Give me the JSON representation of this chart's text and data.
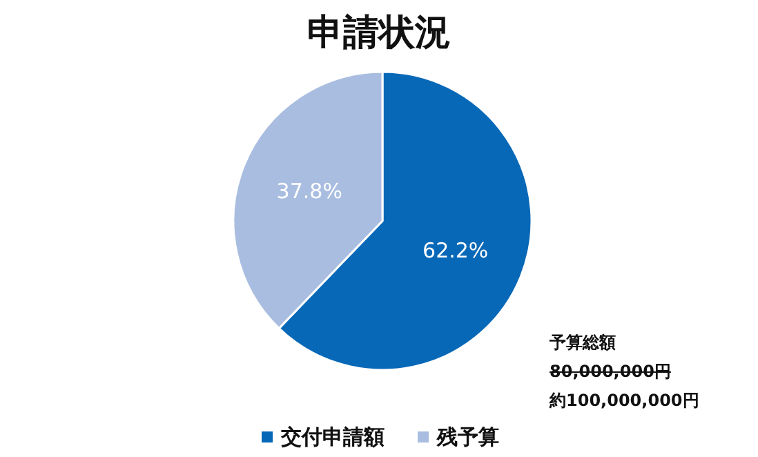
{
  "chart_data": {
    "type": "pie",
    "title": "申請状況",
    "categories": [
      "交付申請額",
      "残予算"
    ],
    "values": [
      62.2,
      37.8
    ],
    "colors": [
      "#0868b8",
      "#a9bde0"
    ],
    "value_labels": [
      "62.2%",
      "37.8%"
    ],
    "legend": "bottom",
    "annotations": [
      "予算総額",
      "80,000,000円",
      "約100,000,000円"
    ]
  }
}
